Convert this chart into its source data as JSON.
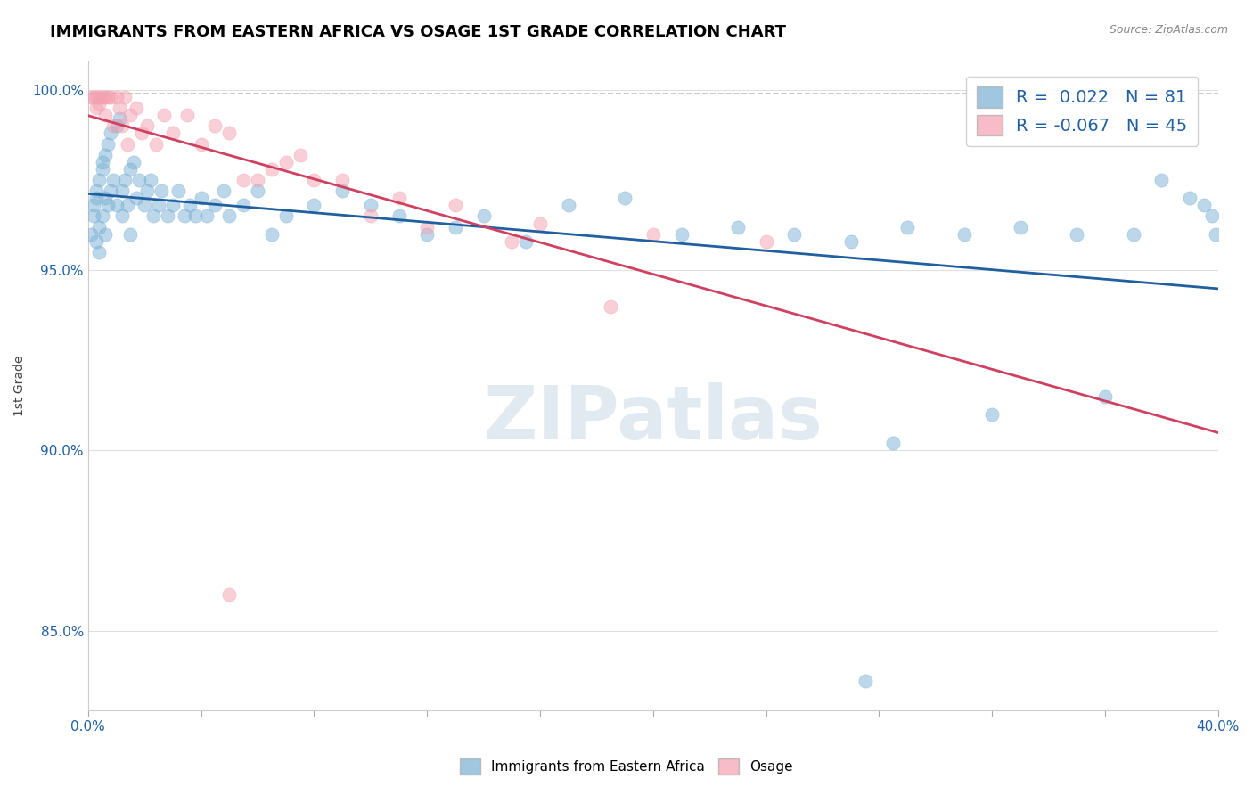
{
  "title": "IMMIGRANTS FROM EASTERN AFRICA VS OSAGE 1ST GRADE CORRELATION CHART",
  "source_text": "Source: ZipAtlas.com",
  "xlabel": "",
  "ylabel": "1st Grade",
  "xlim": [
    0.0,
    0.4
  ],
  "ylim": [
    0.828,
    1.008
  ],
  "xticks": [
    0.0,
    0.4
  ],
  "xtick_labels": [
    "0.0%",
    "40.0%"
  ],
  "yticks": [
    0.85,
    0.9,
    0.95,
    1.0
  ],
  "ytick_labels": [
    "85.0%",
    "90.0%",
    "95.0%",
    "100.0%"
  ],
  "blue_color": "#7ab0d4",
  "pink_color": "#f4a0b0",
  "blue_line_color": "#2060a0",
  "pink_line_color": "#d04060",
  "dashed_line_y": 0.999,
  "dashed_line_color": "#c0c0c0",
  "R_blue": 0.022,
  "N_blue": 81,
  "R_pink": -0.067,
  "N_pink": 45,
  "legend_text_color": "#2060a0",
  "watermark": "ZIPatlas",
  "watermark_color": "#d0dce8",
  "blue_scatter_x": [
    0.001,
    0.002,
    0.002,
    0.003,
    0.003,
    0.003,
    0.004,
    0.004,
    0.004,
    0.005,
    0.005,
    0.005,
    0.006,
    0.006,
    0.006,
    0.007,
    0.007,
    0.008,
    0.008,
    0.009,
    0.01,
    0.01,
    0.011,
    0.012,
    0.012,
    0.013,
    0.014,
    0.015,
    0.015,
    0.016,
    0.017,
    0.018,
    0.02,
    0.021,
    0.022,
    0.023,
    0.025,
    0.026,
    0.028,
    0.03,
    0.032,
    0.034,
    0.036,
    0.038,
    0.04,
    0.042,
    0.045,
    0.048,
    0.05,
    0.055,
    0.06,
    0.065,
    0.07,
    0.08,
    0.09,
    0.1,
    0.11,
    0.12,
    0.13,
    0.14,
    0.155,
    0.17,
    0.19,
    0.21,
    0.23,
    0.25,
    0.27,
    0.29,
    0.31,
    0.33,
    0.35,
    0.37,
    0.38,
    0.39,
    0.395,
    0.398,
    0.399,
    0.285,
    0.32,
    0.36,
    0.275
  ],
  "blue_scatter_y": [
    0.96,
    0.965,
    0.968,
    0.97,
    0.972,
    0.958,
    0.975,
    0.962,
    0.955,
    0.978,
    0.98,
    0.965,
    0.982,
    0.97,
    0.96,
    0.985,
    0.968,
    0.988,
    0.972,
    0.975,
    0.99,
    0.968,
    0.992,
    0.972,
    0.965,
    0.975,
    0.968,
    0.978,
    0.96,
    0.98,
    0.97,
    0.975,
    0.968,
    0.972,
    0.975,
    0.965,
    0.968,
    0.972,
    0.965,
    0.968,
    0.972,
    0.965,
    0.968,
    0.965,
    0.97,
    0.965,
    0.968,
    0.972,
    0.965,
    0.968,
    0.972,
    0.96,
    0.965,
    0.968,
    0.972,
    0.968,
    0.965,
    0.96,
    0.962,
    0.965,
    0.958,
    0.968,
    0.97,
    0.96,
    0.962,
    0.96,
    0.958,
    0.962,
    0.96,
    0.962,
    0.96,
    0.96,
    0.975,
    0.97,
    0.968,
    0.965,
    0.96,
    0.902,
    0.91,
    0.915,
    0.836
  ],
  "pink_scatter_x": [
    0.001,
    0.002,
    0.003,
    0.003,
    0.004,
    0.004,
    0.005,
    0.006,
    0.006,
    0.007,
    0.008,
    0.009,
    0.01,
    0.011,
    0.012,
    0.013,
    0.014,
    0.015,
    0.017,
    0.019,
    0.021,
    0.024,
    0.027,
    0.03,
    0.035,
    0.04,
    0.045,
    0.05,
    0.06,
    0.07,
    0.08,
    0.1,
    0.12,
    0.15,
    0.185,
    0.05,
    0.055,
    0.065,
    0.075,
    0.09,
    0.11,
    0.13,
    0.16,
    0.2,
    0.24
  ],
  "pink_scatter_y": [
    0.998,
    0.998,
    0.998,
    0.995,
    0.998,
    0.996,
    0.998,
    0.998,
    0.993,
    0.998,
    0.998,
    0.99,
    0.998,
    0.995,
    0.99,
    0.998,
    0.985,
    0.993,
    0.995,
    0.988,
    0.99,
    0.985,
    0.993,
    0.988,
    0.993,
    0.985,
    0.99,
    0.988,
    0.975,
    0.98,
    0.975,
    0.965,
    0.962,
    0.958,
    0.94,
    0.86,
    0.975,
    0.978,
    0.982,
    0.975,
    0.97,
    0.968,
    0.963,
    0.96,
    0.958
  ]
}
